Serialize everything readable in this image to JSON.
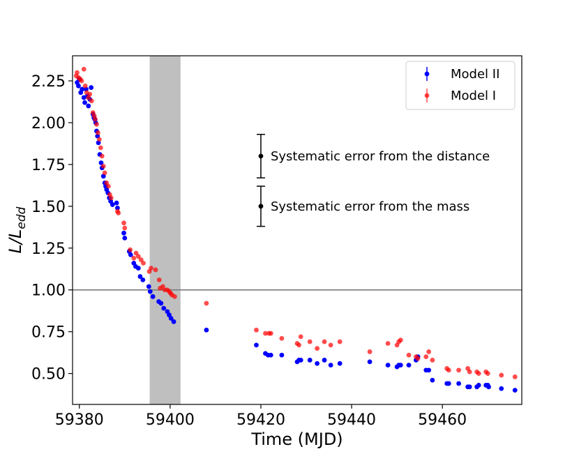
{
  "chart_data": {
    "type": "scatter",
    "xlabel": "Time (MJD)",
    "ylabel_main": "L/L",
    "ylabel_sub": "edd",
    "xlim": [
      59378.5,
      59477.5
    ],
    "ylim": [
      0.315,
      2.4
    ],
    "xticks": [
      59380,
      59400,
      59420,
      59440,
      59460
    ],
    "yticks": [
      0.5,
      0.75,
      1.0,
      1.25,
      1.5,
      1.75,
      2.0,
      2.25
    ],
    "ytick_labels": [
      "0.50",
      "0.75",
      "1.00",
      "1.25",
      "1.50",
      "1.75",
      "2.00",
      "2.25"
    ],
    "hline": 1.0,
    "shaded_span": [
      59395.5,
      59402.3
    ],
    "grid": false,
    "legend_position": "top-right",
    "series": [
      {
        "name": "Model II",
        "color": "#0000ff",
        "points": [
          [
            59379.5,
            2.24
          ],
          [
            59379.8,
            2.22
          ],
          [
            59380.0,
            2.26
          ],
          [
            59380.3,
            2.18
          ],
          [
            59380.6,
            2.2
          ],
          [
            59381.0,
            2.15
          ],
          [
            59381.2,
            2.12
          ],
          [
            59381.5,
            2.2
          ],
          [
            59381.8,
            2.16
          ],
          [
            59382.0,
            2.1
          ],
          [
            59382.3,
            2.14
          ],
          [
            59382.6,
            2.21
          ],
          [
            59383.0,
            2.05
          ],
          [
            59383.2,
            2.03
          ],
          [
            59383.4,
            2.02
          ],
          [
            59383.6,
            2.0
          ],
          [
            59383.8,
            1.95
          ],
          [
            59384.0,
            1.92
          ],
          [
            59384.2,
            1.88
          ],
          [
            59384.5,
            1.81
          ],
          [
            59384.8,
            1.76
          ],
          [
            59385.0,
            1.73
          ],
          [
            59385.3,
            1.68
          ],
          [
            59385.6,
            1.64
          ],
          [
            59385.8,
            1.62
          ],
          [
            59386.0,
            1.6
          ],
          [
            59386.3,
            1.58
          ],
          [
            59386.6,
            1.55
          ],
          [
            59386.9,
            1.53
          ],
          [
            59387.3,
            1.51
          ],
          [
            59388.2,
            1.52
          ],
          [
            59388.4,
            1.49
          ],
          [
            59389.8,
            1.34
          ],
          [
            59390.0,
            1.31
          ],
          [
            59391.0,
            1.23
          ],
          [
            59391.3,
            1.21
          ],
          [
            59392.0,
            1.16
          ],
          [
            59392.4,
            1.14
          ],
          [
            59393.0,
            1.13
          ],
          [
            59393.4,
            1.08
          ],
          [
            59394.0,
            1.06
          ],
          [
            59395.3,
            1.02
          ],
          [
            59395.6,
            0.99
          ],
          [
            59396.2,
            0.96
          ],
          [
            59397.5,
            0.93
          ],
          [
            59398.0,
            0.92
          ],
          [
            59398.6,
            0.89
          ],
          [
            59399.4,
            0.87
          ],
          [
            59399.8,
            0.85
          ],
          [
            59400.2,
            0.83
          ],
          [
            59400.8,
            0.81
          ],
          [
            59408.0,
            0.76
          ],
          [
            59419.0,
            0.67
          ],
          [
            59421.0,
            0.62
          ],
          [
            59421.6,
            0.61
          ],
          [
            59422.2,
            0.61
          ],
          [
            59424.6,
            0.61
          ],
          [
            59428.0,
            0.57
          ],
          [
            59428.4,
            0.58
          ],
          [
            59428.8,
            0.58
          ],
          [
            59430.8,
            0.58
          ],
          [
            59432.4,
            0.56
          ],
          [
            59434.0,
            0.58
          ],
          [
            59435.4,
            0.55
          ],
          [
            59437.4,
            0.56
          ],
          [
            59444.0,
            0.57
          ],
          [
            59448.0,
            0.55
          ],
          [
            59450.0,
            0.54
          ],
          [
            59450.4,
            0.55
          ],
          [
            59450.8,
            0.55
          ],
          [
            59452.6,
            0.55
          ],
          [
            59454.6,
            0.6
          ],
          [
            59454.2,
            0.58
          ],
          [
            59456.4,
            0.52
          ],
          [
            59457.0,
            0.52
          ],
          [
            59457.8,
            0.46
          ],
          [
            59461.0,
            0.44
          ],
          [
            59461.4,
            0.44
          ],
          [
            59463.6,
            0.44
          ],
          [
            59465.6,
            0.42
          ],
          [
            59466.0,
            0.42
          ],
          [
            59467.6,
            0.42
          ],
          [
            59468.0,
            0.43
          ],
          [
            59469.6,
            0.43
          ],
          [
            59470.0,
            0.43
          ],
          [
            59470.2,
            0.42
          ],
          [
            59473.0,
            0.41
          ],
          [
            59476.0,
            0.4
          ]
        ]
      },
      {
        "name": "Model I",
        "color": "#ff0000",
        "points": [
          [
            59379.3,
            2.28
          ],
          [
            59379.5,
            2.3
          ],
          [
            59379.8,
            2.27
          ],
          [
            59380.2,
            2.26
          ],
          [
            59380.5,
            2.25
          ],
          [
            59381.0,
            2.32
          ],
          [
            59381.3,
            2.22
          ],
          [
            59381.6,
            2.18
          ],
          [
            59382.0,
            2.15
          ],
          [
            59382.3,
            2.17
          ],
          [
            59382.7,
            2.13
          ],
          [
            59383.0,
            2.06
          ],
          [
            59383.3,
            2.04
          ],
          [
            59383.5,
            2.02
          ],
          [
            59383.8,
            1.99
          ],
          [
            59384.1,
            1.94
          ],
          [
            59384.4,
            1.9
          ],
          [
            59384.7,
            1.85
          ],
          [
            59385.0,
            1.8
          ],
          [
            59385.3,
            1.74
          ],
          [
            59385.6,
            1.7
          ],
          [
            59386.0,
            1.64
          ],
          [
            59386.4,
            1.62
          ],
          [
            59386.7,
            1.57
          ],
          [
            59387.0,
            1.55
          ],
          [
            59388.4,
            1.47
          ],
          [
            59388.6,
            1.46
          ],
          [
            59389.8,
            1.4
          ],
          [
            59390.0,
            1.37
          ],
          [
            59391.2,
            1.24
          ],
          [
            59392.0,
            1.19
          ],
          [
            59392.5,
            1.22
          ],
          [
            59393.0,
            1.2
          ],
          [
            59393.6,
            1.18
          ],
          [
            59394.1,
            1.16
          ],
          [
            59395.4,
            1.11
          ],
          [
            59395.8,
            1.13
          ],
          [
            59396.8,
            1.12
          ],
          [
            59397.6,
            1.06
          ],
          [
            59397.8,
            1.01
          ],
          [
            59398.4,
            1.02
          ],
          [
            59398.8,
            1.0
          ],
          [
            59399.4,
            1.0
          ],
          [
            59399.8,
            0.99
          ],
          [
            59400.1,
            0.98
          ],
          [
            59400.4,
            0.97
          ],
          [
            59401.0,
            0.96
          ],
          [
            59408.0,
            0.92
          ],
          [
            59419.0,
            0.76
          ],
          [
            59421.0,
            0.74
          ],
          [
            59421.8,
            0.74
          ],
          [
            59422.2,
            0.74
          ],
          [
            59424.6,
            0.71
          ],
          [
            59428.0,
            0.68
          ],
          [
            59428.4,
            0.67
          ],
          [
            59428.8,
            0.72
          ],
          [
            59430.8,
            0.69
          ],
          [
            59432.4,
            0.65
          ],
          [
            59434.0,
            0.69
          ],
          [
            59435.4,
            0.67
          ],
          [
            59437.4,
            0.69
          ],
          [
            59444.0,
            0.63
          ],
          [
            59448.0,
            0.68
          ],
          [
            59450.0,
            0.67
          ],
          [
            59450.4,
            0.69
          ],
          [
            59450.8,
            0.7
          ],
          [
            59452.6,
            0.61
          ],
          [
            59454.2,
            0.6
          ],
          [
            59454.6,
            0.59
          ],
          [
            59456.4,
            0.6
          ],
          [
            59457.0,
            0.63
          ],
          [
            59457.8,
            0.58
          ],
          [
            59461.0,
            0.53
          ],
          [
            59461.4,
            0.52
          ],
          [
            59463.6,
            0.52
          ],
          [
            59465.6,
            0.53
          ],
          [
            59466.0,
            0.51
          ],
          [
            59467.6,
            0.51
          ],
          [
            59468.0,
            0.5
          ],
          [
            59469.6,
            0.51
          ],
          [
            59470.0,
            0.5
          ],
          [
            59473.0,
            0.49
          ],
          [
            59476.0,
            0.48
          ]
        ]
      }
    ],
    "annotations": [
      {
        "text": "Systematic error from the distance",
        "x": 59420.0,
        "y": 1.8,
        "ylow": 1.67,
        "yhigh": 1.93
      },
      {
        "text": "Systematic error from the mass",
        "x": 59420.0,
        "y": 1.5,
        "ylow": 1.38,
        "yhigh": 1.62
      }
    ]
  }
}
